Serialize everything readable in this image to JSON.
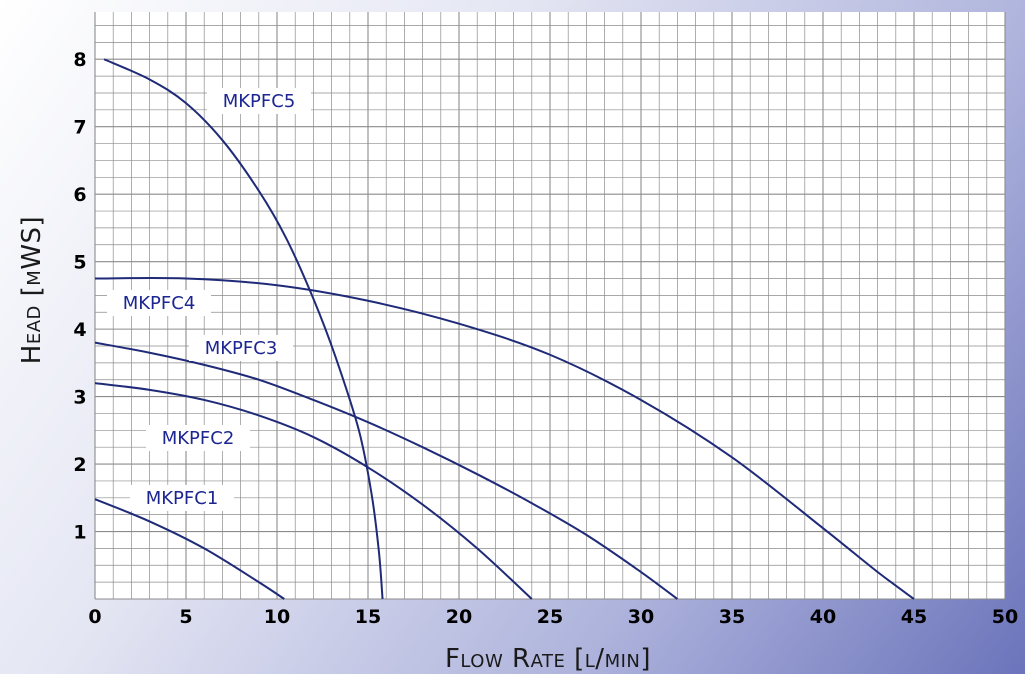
{
  "chart_data": {
    "type": "line",
    "xlabel": "Flow Rate [l/min]",
    "ylabel": "Head [mWS]",
    "xlim": [
      0,
      50
    ],
    "ylim": [
      0,
      8.7
    ],
    "x_ticks": [
      "0",
      "5",
      "10",
      "15",
      "20",
      "25",
      "30",
      "35",
      "40",
      "45",
      "50"
    ],
    "y_ticks": [
      "1",
      "2",
      "3",
      "4",
      "5",
      "6",
      "7",
      "8"
    ],
    "grid": true,
    "colors": {
      "series": "#1f2a78",
      "label_text": "#1c2690",
      "grid": "#8c8c8c",
      "plot_bg": "#ffffff"
    },
    "series": [
      {
        "name": "MKPFC1",
        "x": [
          0,
          3,
          6,
          9,
          10.4
        ],
        "y": [
          1.48,
          1.15,
          0.75,
          0.25,
          0
        ]
      },
      {
        "name": "MKPFC2",
        "x": [
          0,
          3,
          6,
          9,
          12,
          15,
          18,
          21,
          24
        ],
        "y": [
          3.2,
          3.1,
          2.95,
          2.72,
          2.4,
          1.95,
          1.4,
          0.75,
          0
        ]
      },
      {
        "name": "MKPFC3",
        "x": [
          0,
          3,
          6,
          9,
          12,
          15,
          18,
          21,
          24,
          27,
          30,
          32
        ],
        "y": [
          3.8,
          3.65,
          3.47,
          3.25,
          2.95,
          2.62,
          2.25,
          1.85,
          1.42,
          0.95,
          0.4,
          0
        ]
      },
      {
        "name": "MKPFC4",
        "x": [
          0,
          5,
          10,
          15,
          20,
          25,
          30,
          35,
          40,
          43,
          45
        ],
        "y": [
          4.75,
          4.75,
          4.65,
          4.42,
          4.08,
          3.62,
          2.95,
          2.1,
          1.05,
          0.4,
          0
        ]
      },
      {
        "name": "MKPFC5",
        "x": [
          0.5,
          3,
          5,
          7,
          9,
          10.5,
          12,
          13.2,
          14.5,
          15.2,
          15.6,
          15.8
        ],
        "y": [
          8.0,
          7.7,
          7.35,
          6.8,
          6.05,
          5.35,
          4.45,
          3.6,
          2.5,
          1.55,
          0.7,
          0
        ]
      }
    ],
    "labels": [
      {
        "text": "MKPFC5",
        "series": "MKPFC5"
      },
      {
        "text": "MKPFC4",
        "series": "MKPFC4"
      },
      {
        "text": "MKPFC3",
        "series": "MKPFC3"
      },
      {
        "text": "MKPFC2",
        "series": "MKPFC2"
      },
      {
        "text": "MKPFC1",
        "series": "MKPFC1"
      }
    ]
  }
}
